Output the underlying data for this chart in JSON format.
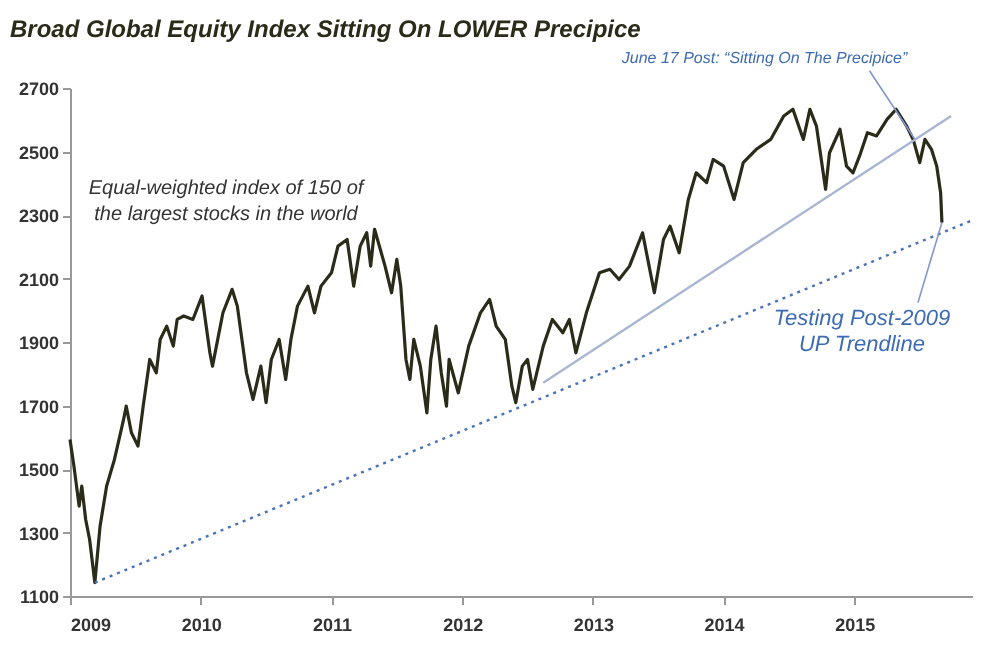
{
  "chart_data": {
    "type": "line",
    "title": "Broad Global Equity Index Sitting On LOWER Precipice",
    "annotations": [
      "Equal-weighted index of 150 of the largest stocks in the world",
      {
        "text": "June 17 Post: “Sitting On The Precipice”",
        "x": 2015.46,
        "y": 2540
      },
      {
        "text": "Testing Post-2009 UP Trendline",
        "x": 2015.67,
        "y": 2276
      }
    ],
    "xlim": [
      2009,
      2015.9
    ],
    "xticks": [
      2009,
      2010,
      2011,
      2012,
      2013,
      2014,
      2015
    ],
    "ylim": [
      1100,
      2700
    ],
    "yticks": [
      1100,
      1300,
      1500,
      1700,
      1900,
      2100,
      2300,
      2500,
      2700
    ],
    "series": [
      {
        "color": "#2b2b1a",
        "line_style": "solid",
        "x": [
          2009.0,
          2009.03,
          2009.07,
          2009.09,
          2009.12,
          2009.15,
          2009.19,
          2009.23,
          2009.28,
          2009.34,
          2009.41,
          2009.43,
          2009.47,
          2009.52,
          2009.56,
          2009.61,
          2009.66,
          2009.69,
          2009.74,
          2009.79,
          2009.82,
          2009.87,
          2009.94,
          2010.01,
          2010.07,
          2010.09,
          2010.12,
          2010.17,
          2010.24,
          2010.28,
          2010.35,
          2010.4,
          2010.46,
          2010.5,
          2010.54,
          2010.6,
          2010.65,
          2010.69,
          2010.74,
          2010.82,
          2010.87,
          2010.92,
          2011.0,
          2011.05,
          2011.12,
          2011.17,
          2011.22,
          2011.27,
          2011.3,
          2011.33,
          2011.41,
          2011.46,
          2011.5,
          2011.53,
          2011.57,
          2011.6,
          2011.63,
          2011.68,
          2011.73,
          2011.76,
          2011.8,
          2011.84,
          2011.88,
          2011.9,
          2011.97,
          2012.05,
          2012.14,
          2012.21,
          2012.26,
          2012.33,
          2012.38,
          2012.41,
          2012.46,
          2012.5,
          2012.54,
          2012.62,
          2012.69,
          2012.77,
          2012.82,
          2012.87,
          2012.95,
          2013.05,
          2013.13,
          2013.2,
          2013.28,
          2013.38,
          2013.47,
          2013.54,
          2013.59,
          2013.66,
          2013.73,
          2013.79,
          2013.87,
          2013.92,
          2014.0,
          2014.08,
          2014.15,
          2014.25,
          2014.36,
          2014.46,
          2014.53,
          2014.61,
          2014.66,
          2014.71,
          2014.78,
          2014.81,
          2014.89,
          2014.94,
          2014.99,
          2015.04,
          2015.1,
          2015.17,
          2015.25,
          2015.32,
          2015.4,
          2015.45,
          2015.5,
          2015.54,
          2015.59,
          2015.63,
          2015.66,
          2015.67
        ],
        "values": [
          1593,
          1509,
          1383,
          1446,
          1341,
          1278,
          1142,
          1320,
          1446,
          1530,
          1656,
          1698,
          1614,
          1572,
          1698,
          1845,
          1803,
          1908,
          1950,
          1887,
          1971,
          1982,
          1971,
          2045,
          1866,
          1824,
          1887,
          1992,
          2066,
          2013,
          1803,
          1719,
          1824,
          1709,
          1845,
          1908,
          1782,
          1908,
          2013,
          2076,
          1992,
          2076,
          2118,
          2202,
          2223,
          2076,
          2202,
          2244,
          2139,
          2255,
          2139,
          2055,
          2160,
          2076,
          1845,
          1782,
          1908,
          1824,
          1677,
          1845,
          1950,
          1803,
          1698,
          1845,
          1740,
          1887,
          1992,
          2034,
          1950,
          1908,
          1761,
          1709,
          1824,
          1845,
          1751,
          1887,
          1971,
          1929,
          1971,
          1866,
          1992,
          2118,
          2129,
          2097,
          2139,
          2244,
          2055,
          2223,
          2265,
          2181,
          2349,
          2433,
          2402,
          2475,
          2454,
          2349,
          2465,
          2507,
          2538,
          2612,
          2633,
          2538,
          2633,
          2580,
          2381,
          2496,
          2570,
          2454,
          2433,
          2486,
          2559,
          2549,
          2601,
          2633,
          2580,
          2538,
          2465,
          2538,
          2507,
          2454,
          2370,
          2276
        ]
      },
      {
        "type": "line",
        "color": "#4a72b8",
        "line_style": "dotted",
        "x": [
          2009.19,
          2015.9
        ],
        "values": [
          1142,
          2283
        ]
      },
      {
        "type": "line",
        "color": "#a9b6d2",
        "line_style": "solid",
        "x": [
          2012.62,
          2015.74
        ],
        "values": [
          1772,
          2612
        ]
      }
    ]
  }
}
